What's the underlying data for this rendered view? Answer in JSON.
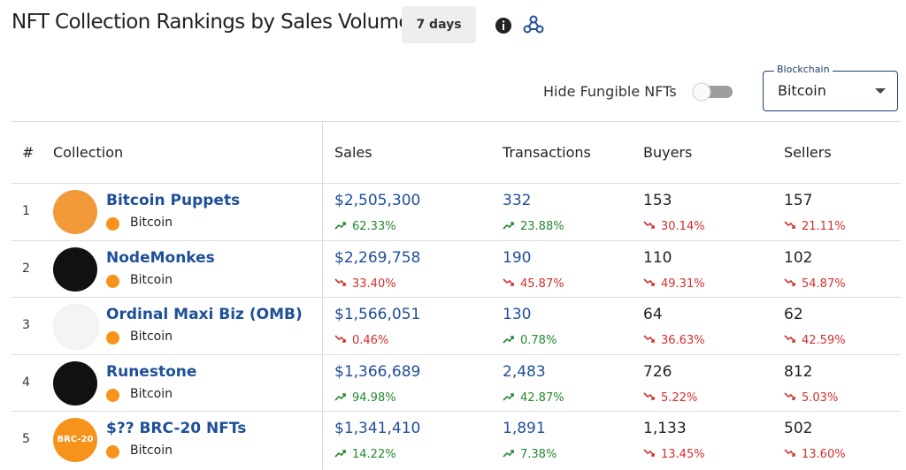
{
  "header": {
    "title": "NFT Collection Rankings by Sales Volume",
    "period": "7 days"
  },
  "controls": {
    "hide_fungible_label": "Hide Fungible NFTs",
    "blockchain_label": "Blockchain",
    "blockchain_value": "Bitcoin"
  },
  "table": {
    "columns": [
      "#",
      "Collection",
      "Sales",
      "Transactions",
      "Buyers",
      "Sellers"
    ],
    "rows": [
      {
        "rank": "1",
        "name": "Bitcoin Puppets",
        "chain": "Bitcoin",
        "sales": "$2,505,300",
        "sales_change": {
          "text": "62.33%",
          "trend": "up"
        },
        "transactions": "332",
        "transactions_change": {
          "text": "23.88%",
          "trend": "up"
        },
        "buyers": "153",
        "buyers_change": {
          "text": "30.14%",
          "trend": "down"
        },
        "sellers": "157",
        "sellers_change": {
          "text": "21.11%",
          "trend": "down"
        }
      },
      {
        "rank": "2",
        "name": "NodeMonkes",
        "chain": "Bitcoin",
        "sales": "$2,269,758",
        "sales_change": {
          "text": "33.40%",
          "trend": "down"
        },
        "transactions": "190",
        "transactions_change": {
          "text": "45.87%",
          "trend": "down"
        },
        "buyers": "110",
        "buyers_change": {
          "text": "49.31%",
          "trend": "down"
        },
        "sellers": "102",
        "sellers_change": {
          "text": "54.87%",
          "trend": "down"
        }
      },
      {
        "rank": "3",
        "name": "Ordinal Maxi Biz (OMB)",
        "chain": "Bitcoin",
        "sales": "$1,566,051",
        "sales_change": {
          "text": "0.46%",
          "trend": "down"
        },
        "transactions": "130",
        "transactions_change": {
          "text": "0.78%",
          "trend": "up"
        },
        "buyers": "64",
        "buyers_change": {
          "text": "36.63%",
          "trend": "down"
        },
        "sellers": "62",
        "sellers_change": {
          "text": "42.59%",
          "trend": "down"
        }
      },
      {
        "rank": "4",
        "name": "Runestone",
        "chain": "Bitcoin",
        "sales": "$1,366,689",
        "sales_change": {
          "text": "94.98%",
          "trend": "up"
        },
        "transactions": "2,483",
        "transactions_change": {
          "text": "42.87%",
          "trend": "up"
        },
        "buyers": "726",
        "buyers_change": {
          "text": "5.22%",
          "trend": "down"
        },
        "sellers": "812",
        "sellers_change": {
          "text": "5.03%",
          "trend": "down"
        }
      },
      {
        "rank": "5",
        "name": "$?? BRC-20 NFTs",
        "chain": "Bitcoin",
        "avatar_label": "BRC-20",
        "sales": "$1,341,410",
        "sales_change": {
          "text": "14.22%",
          "trend": "up"
        },
        "transactions": "1,891",
        "transactions_change": {
          "text": "7.38%",
          "trend": "up"
        },
        "buyers": "1,133",
        "buyers_change": {
          "text": "13.45%",
          "trend": "down"
        },
        "sellers": "502",
        "sellers_change": {
          "text": "13.60%",
          "trend": "down"
        }
      }
    ]
  }
}
